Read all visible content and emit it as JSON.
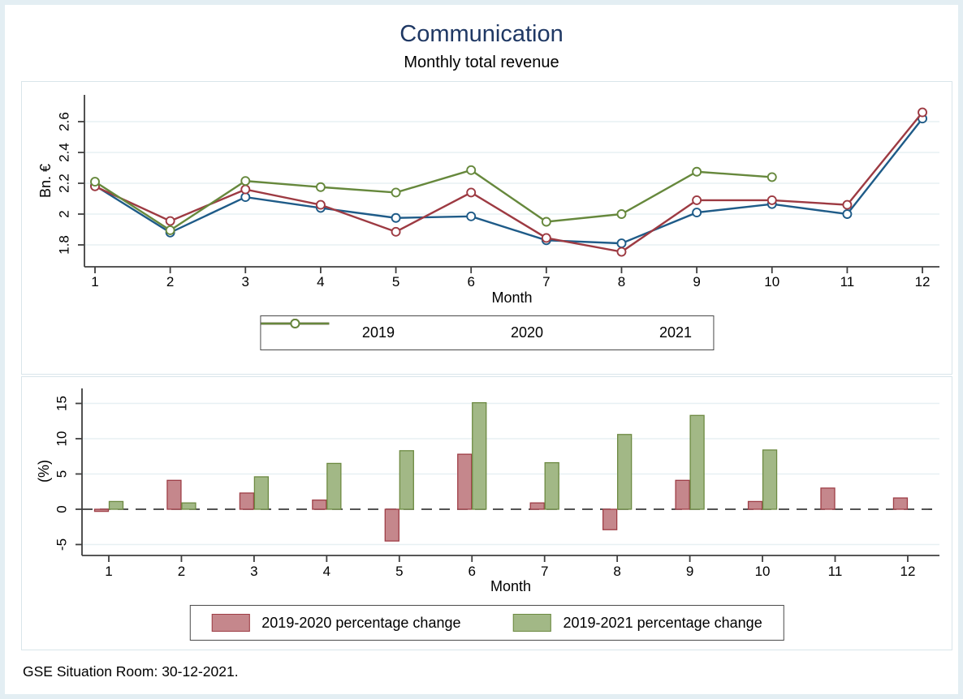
{
  "title": "Communication",
  "subtitle": "Monthly total revenue",
  "footer": "GSE Situation Room: 30-12-2021.",
  "colors": {
    "title": "#1f3864",
    "grid": "#e7f0f3",
    "axis": "#3f3f3f",
    "zero_line": "#1a1a1a",
    "figure_border": "#e3eef3",
    "panel_border": "#d9e5ea"
  },
  "chart_data": [
    {
      "type": "line",
      "title": "Communication",
      "subtitle": "Monthly total revenue",
      "xlabel": "Month",
      "ylabel": "Bn. €",
      "x": [
        1,
        2,
        3,
        4,
        5,
        6,
        7,
        8,
        9,
        10,
        11,
        12
      ],
      "yticks": [
        1.8,
        2,
        2.2,
        2.4,
        2.6
      ],
      "ylim": [
        1.66,
        2.78
      ],
      "grid": true,
      "legend_position": "bottom",
      "series": [
        {
          "name": "2019",
          "color": "#1e5b88",
          "marker": "hollow-circle",
          "values": [
            2.185,
            1.88,
            2.11,
            2.04,
            1.975,
            1.985,
            1.83,
            1.81,
            2.01,
            2.065,
            2.0,
            2.62
          ]
        },
        {
          "name": "2020",
          "color": "#9d3a42",
          "marker": "hollow-circle",
          "values": [
            2.18,
            1.955,
            2.16,
            2.06,
            1.885,
            2.14,
            1.845,
            1.755,
            2.09,
            2.09,
            2.06,
            2.66
          ]
        },
        {
          "name": "2021",
          "color": "#66883c",
          "marker": "hollow-circle",
          "values": [
            2.21,
            1.895,
            2.215,
            2.175,
            2.14,
            2.285,
            1.95,
            2.0,
            2.275,
            2.24,
            null,
            null
          ]
        }
      ]
    },
    {
      "type": "bar",
      "xlabel": "Month",
      "ylabel": "(%)",
      "categories": [
        1,
        2,
        3,
        4,
        5,
        6,
        7,
        8,
        9,
        10,
        11,
        12
      ],
      "yticks": [
        -5,
        0,
        5,
        10,
        15
      ],
      "ylim": [
        -7.2,
        17.3
      ],
      "zero_line": "dashed",
      "grid": true,
      "legend_position": "bottom",
      "series": [
        {
          "name": "2019-2020 percentage change",
          "fill": "#c5878c",
          "border": "#9e3e46",
          "values": [
            -0.3,
            4.1,
            2.3,
            1.3,
            -4.5,
            7.8,
            0.9,
            -2.9,
            4.1,
            1.1,
            3.0,
            1.6
          ]
        },
        {
          "name": "2019-2021 percentage change",
          "fill": "#a2b886",
          "border": "#6d8a42",
          "values": [
            1.1,
            0.9,
            4.6,
            6.5,
            8.3,
            15.1,
            6.6,
            10.6,
            13.3,
            8.4,
            null,
            null
          ]
        }
      ]
    }
  ]
}
